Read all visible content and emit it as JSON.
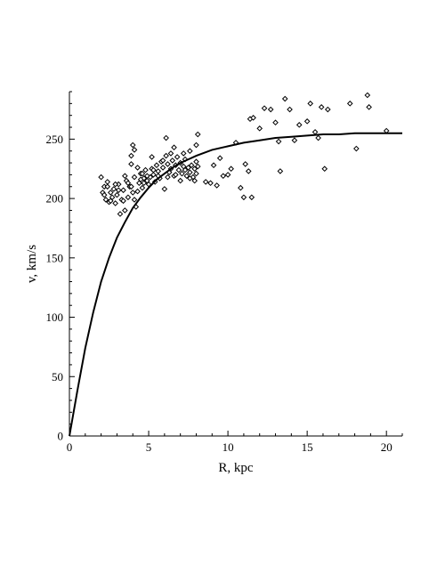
{
  "chart_data": {
    "type": "scatter",
    "xlabel": "R, kpc",
    "ylabel": "v, km/s",
    "xlim": [
      0,
      21
    ],
    "ylim": [
      0,
      290
    ],
    "xticks": [
      0,
      5,
      10,
      15,
      20
    ],
    "yticks": [
      0,
      50,
      100,
      150,
      200,
      250
    ],
    "grid": false,
    "marker": "open-diamond",
    "line_color": "#000000",
    "marker_color": "#000000",
    "series": [
      {
        "kind": "curve",
        "points": [
          [
            0,
            0
          ],
          [
            0.5,
            38
          ],
          [
            1,
            74
          ],
          [
            1.5,
            104
          ],
          [
            2,
            130
          ],
          [
            2.5,
            150
          ],
          [
            3,
            167
          ],
          [
            3.5,
            180
          ],
          [
            4,
            192
          ],
          [
            4.5,
            201
          ],
          [
            5,
            209
          ],
          [
            5.5,
            216
          ],
          [
            6,
            221
          ],
          [
            6.5,
            226
          ],
          [
            7,
            230
          ],
          [
            7.5,
            233
          ],
          [
            8,
            236
          ],
          [
            9,
            241
          ],
          [
            10,
            244
          ],
          [
            11,
            247
          ],
          [
            12,
            249
          ],
          [
            13,
            251
          ],
          [
            14,
            252
          ],
          [
            15,
            253
          ],
          [
            16,
            254
          ],
          [
            17,
            254
          ],
          [
            18,
            255
          ],
          [
            19,
            255
          ],
          [
            20,
            255
          ],
          [
            21,
            255
          ]
        ]
      },
      {
        "kind": "points",
        "points": [
          [
            2.0,
            218
          ],
          [
            2.1,
            205
          ],
          [
            2.2,
            210
          ],
          [
            2.3,
            199
          ],
          [
            2.4,
            214
          ],
          [
            2.5,
            197
          ],
          [
            2.6,
            205
          ],
          [
            2.7,
            201
          ],
          [
            2.8,
            208
          ],
          [
            2.9,
            196
          ],
          [
            3.0,
            203
          ],
          [
            3.1,
            212
          ],
          [
            3.2,
            187
          ],
          [
            3.3,
            199
          ],
          [
            3.4,
            207
          ],
          [
            3.5,
            190
          ],
          [
            3.6,
            215
          ],
          [
            3.7,
            201
          ],
          [
            3.8,
            210
          ],
          [
            3.9,
            229
          ],
          [
            4.0,
            205
          ],
          [
            4.1,
            218
          ],
          [
            4.2,
            193
          ],
          [
            4.3,
            226
          ],
          [
            4.4,
            213
          ],
          [
            4.5,
            221
          ],
          [
            4.6,
            209
          ],
          [
            4.7,
            217
          ],
          [
            4.8,
            224
          ],
          [
            4.9,
            215
          ],
          [
            5.0,
            212
          ],
          [
            5.1,
            218
          ],
          [
            5.2,
            225
          ],
          [
            5.3,
            220
          ],
          [
            5.4,
            214
          ],
          [
            5.5,
            228
          ],
          [
            5.6,
            223
          ],
          [
            5.7,
            217
          ],
          [
            5.8,
            231
          ],
          [
            5.9,
            226
          ],
          [
            6.0,
            208
          ],
          [
            6.1,
            236
          ],
          [
            6.2,
            229
          ],
          [
            6.3,
            222
          ],
          [
            6.4,
            238
          ],
          [
            6.5,
            232
          ],
          [
            6.6,
            219
          ],
          [
            6.7,
            228
          ],
          [
            6.8,
            235
          ],
          [
            6.9,
            224
          ],
          [
            7.0,
            230
          ],
          [
            7.1,
            221
          ],
          [
            7.2,
            227
          ],
          [
            7.3,
            233
          ],
          [
            7.4,
            219
          ],
          [
            7.5,
            226
          ],
          [
            7.6,
            222
          ],
          [
            7.7,
            228
          ],
          [
            7.8,
            218
          ],
          [
            7.9,
            225
          ],
          [
            8.0,
            231
          ],
          [
            8.0,
            221
          ],
          [
            7.9,
            215
          ],
          [
            8.1,
            227
          ],
          [
            7.6,
            217
          ],
          [
            7.3,
            224
          ],
          [
            7.0,
            215
          ],
          [
            6.7,
            220
          ],
          [
            6.4,
            225
          ],
          [
            6.2,
            218
          ],
          [
            5.9,
            232
          ],
          [
            5.6,
            219
          ],
          [
            5.3,
            224
          ],
          [
            4.9,
            219
          ],
          [
            4.7,
            213
          ],
          [
            4.5,
            216
          ],
          [
            4.3,
            206
          ],
          [
            4.1,
            199
          ],
          [
            3.9,
            210
          ],
          [
            3.7,
            213
          ],
          [
            3.5,
            219
          ],
          [
            3.4,
            198
          ],
          [
            3.1,
            207
          ],
          [
            2.9,
            212
          ],
          [
            2.6,
            198
          ],
          [
            2.4,
            210
          ],
          [
            2.2,
            203
          ],
          [
            4.0,
            245
          ],
          [
            4.1,
            241
          ],
          [
            6.1,
            251
          ],
          [
            5.2,
            235
          ],
          [
            4.6,
            221
          ],
          [
            3.9,
            236
          ],
          [
            6.6,
            243
          ],
          [
            7.2,
            238
          ],
          [
            7.6,
            240
          ],
          [
            8.0,
            245
          ],
          [
            8.1,
            254
          ],
          [
            8.6,
            214
          ],
          [
            8.9,
            213
          ],
          [
            9.1,
            228
          ],
          [
            9.3,
            211
          ],
          [
            9.5,
            234
          ],
          [
            9.7,
            219
          ],
          [
            10.0,
            220
          ],
          [
            10.2,
            225
          ],
          [
            10.5,
            247
          ],
          [
            10.8,
            209
          ],
          [
            11.0,
            201
          ],
          [
            11.1,
            229
          ],
          [
            11.3,
            223
          ],
          [
            11.4,
            267
          ],
          [
            11.5,
            201
          ],
          [
            11.6,
            268
          ],
          [
            12.0,
            259
          ],
          [
            12.3,
            276
          ],
          [
            12.7,
            275
          ],
          [
            13.0,
            264
          ],
          [
            13.2,
            248
          ],
          [
            13.3,
            223
          ],
          [
            13.6,
            284
          ],
          [
            13.9,
            275
          ],
          [
            14.2,
            249
          ],
          [
            14.5,
            262
          ],
          [
            15.0,
            265
          ],
          [
            15.2,
            280
          ],
          [
            15.5,
            256
          ],
          [
            15.7,
            251
          ],
          [
            15.9,
            277
          ],
          [
            16.1,
            225
          ],
          [
            16.3,
            275
          ],
          [
            17.7,
            280
          ],
          [
            18.1,
            242
          ],
          [
            18.8,
            287
          ],
          [
            18.9,
            277
          ],
          [
            20.0,
            257
          ]
        ]
      }
    ]
  }
}
